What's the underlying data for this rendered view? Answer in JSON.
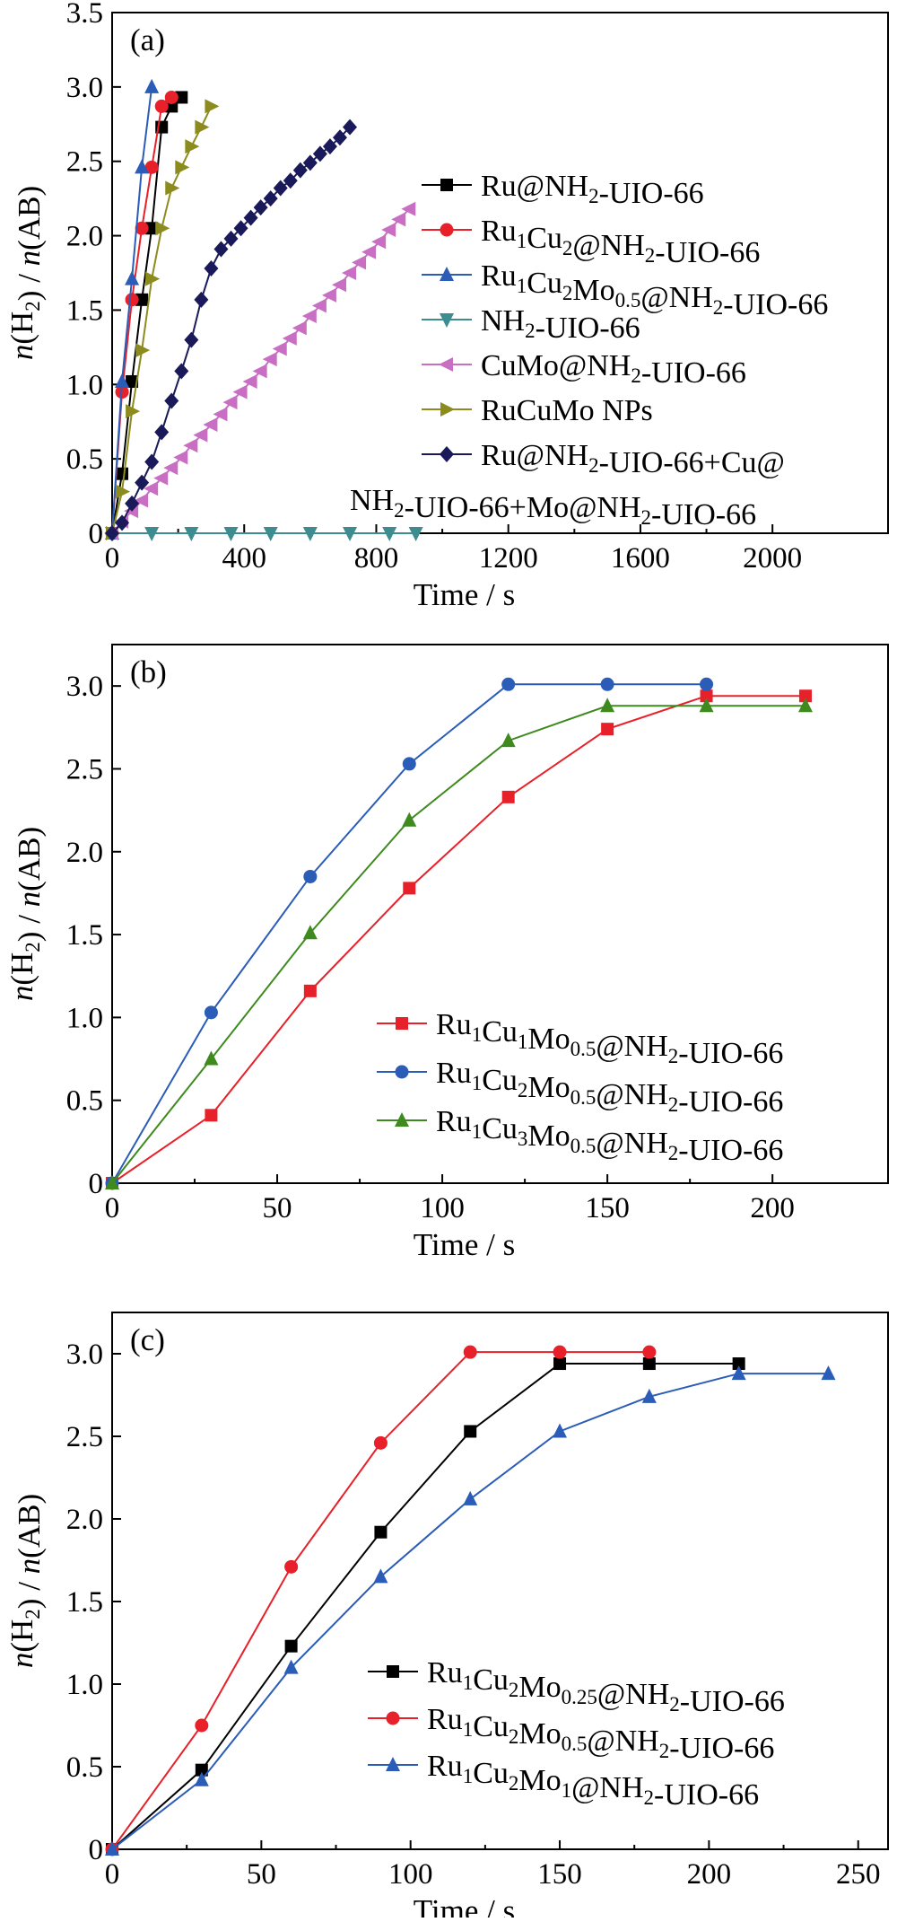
{
  "chart_data": [
    {
      "type": "line",
      "panel_label": "(a)",
      "xlabel": "Time / s",
      "ylabel": "n(H2) / n(AB)",
      "xlim": [
        0,
        2350
      ],
      "ylim": [
        0,
        3.5
      ],
      "xticks": [
        0,
        400,
        800,
        1200,
        1600,
        2000
      ],
      "yticks": [
        0,
        0.5,
        1.0,
        1.5,
        2.0,
        2.5,
        3.0,
        3.5
      ],
      "grid": false,
      "legend_position": "right",
      "series": [
        {
          "name": "Ru@NH2-UIO-66",
          "legend": "Ru@NH₂-UIO-66",
          "color": "#000000",
          "marker": "square",
          "x": [
            0,
            30,
            60,
            90,
            120,
            150,
            180,
            210
          ],
          "y": [
            0,
            0.4,
            1.02,
            1.57,
            2.05,
            2.73,
            2.87,
            2.93
          ]
        },
        {
          "name": "Ru1Cu2@NH2-UIO-66",
          "legend": "Ru₁Cu₂@NH₂-UIO-66",
          "color": "#e8202a",
          "marker": "circle",
          "x": [
            0,
            30,
            60,
            90,
            120,
            150,
            180
          ],
          "y": [
            0,
            0.95,
            1.57,
            2.05,
            2.46,
            2.87,
            2.93
          ]
        },
        {
          "name": "Ru1Cu2Mo0.5@NH2-UIO-66",
          "legend": "Ru₁Cu₂Mo₀.₅@NH₂-UIO-66",
          "color": "#2a5cb8",
          "marker": "triangle-up",
          "x": [
            0,
            30,
            60,
            90,
            120
          ],
          "y": [
            0,
            1.02,
            1.71,
            2.46,
            3.0
          ]
        },
        {
          "name": "NH2-UIO-66",
          "legend": "NH₂-UIO-66",
          "color": "#3d8c8f",
          "marker": "triangle-down",
          "x": [
            0,
            120,
            240,
            360,
            480,
            600,
            720,
            840,
            920
          ],
          "y": [
            0,
            0,
            0,
            0,
            0,
            0,
            0,
            0,
            0
          ]
        },
        {
          "name": "CuMo@NH2-UIO-66",
          "legend": "CuMo@NH₂-UIO-66",
          "color": "#c86fc4",
          "marker": "triangle-left",
          "x": [
            0,
            30,
            60,
            90,
            120,
            150,
            180,
            210,
            240,
            270,
            300,
            330,
            360,
            390,
            420,
            450,
            480,
            510,
            540,
            570,
            600,
            630,
            660,
            690,
            720,
            750,
            780,
            810,
            840,
            870,
            900
          ],
          "y": [
            0,
            0.08,
            0.15,
            0.22,
            0.3,
            0.37,
            0.44,
            0.51,
            0.59,
            0.66,
            0.73,
            0.8,
            0.88,
            0.95,
            1.02,
            1.09,
            1.17,
            1.24,
            1.31,
            1.38,
            1.46,
            1.53,
            1.6,
            1.67,
            1.75,
            1.82,
            1.89,
            1.96,
            2.04,
            2.11,
            2.18
          ]
        },
        {
          "name": "RuCuMo NPs",
          "legend": "RuCuMo NPs",
          "color": "#8c8c1e",
          "marker": "triangle-right",
          "x": [
            0,
            30,
            60,
            90,
            120,
            150,
            180,
            210,
            240,
            270,
            300
          ],
          "y": [
            0,
            0.28,
            0.82,
            1.23,
            1.71,
            2.05,
            2.32,
            2.46,
            2.6,
            2.73,
            2.87
          ]
        },
        {
          "name": "Ru@NH2-UIO-66+Cu@NH2-UIO-66+Mo@NH2-UIO-66",
          "legend": "Ru@NH₂-UIO-66+Cu@",
          "legend_line2": "NH₂-UIO-66+Mo@NH₂-UIO-66",
          "color": "#1a1a5a",
          "marker": "diamond",
          "x": [
            0,
            30,
            60,
            90,
            120,
            150,
            180,
            210,
            240,
            270,
            300,
            330,
            360,
            390,
            420,
            450,
            480,
            510,
            540,
            570,
            600,
            630,
            660,
            690,
            720
          ],
          "y": [
            0,
            0.07,
            0.2,
            0.34,
            0.48,
            0.68,
            0.89,
            1.09,
            1.3,
            1.57,
            1.78,
            1.91,
            1.98,
            2.05,
            2.12,
            2.19,
            2.25,
            2.32,
            2.37,
            2.44,
            2.49,
            2.55,
            2.6,
            2.66,
            2.73
          ]
        }
      ]
    },
    {
      "type": "line",
      "panel_label": "(b)",
      "xlabel": "Time / s",
      "ylabel": "n(H2) / n(AB)",
      "xlim": [
        0,
        235
      ],
      "ylim": [
        0,
        3.25
      ],
      "xticks": [
        0,
        50,
        100,
        150,
        200
      ],
      "yticks": [
        0,
        0.5,
        1.0,
        1.5,
        2.0,
        2.5,
        3.0
      ],
      "grid": false,
      "legend_position": "lower-right",
      "series": [
        {
          "name": "Ru1Cu1Mo0.5@NH2-UIO-66",
          "legend": "Ru₁Cu₁Mo₀.₅@NH₂-UIO-66",
          "color": "#e8202a",
          "marker": "square",
          "x": [
            0,
            30,
            60,
            90,
            120,
            150,
            180,
            210
          ],
          "y": [
            0,
            0.41,
            1.16,
            1.78,
            2.33,
            2.74,
            2.94,
            2.94
          ]
        },
        {
          "name": "Ru1Cu2Mo0.5@NH2-UIO-66",
          "legend": "Ru₁Cu₂Mo₀.₅@NH₂-UIO-66",
          "color": "#2a5cb8",
          "marker": "circle",
          "x": [
            0,
            30,
            60,
            90,
            120,
            150,
            180
          ],
          "y": [
            0,
            1.03,
            1.85,
            2.53,
            3.01,
            3.01,
            3.01
          ]
        },
        {
          "name": "Ru1Cu3Mo0.5@NH2-UIO-66",
          "legend": "Ru₁Cu₃Mo₀.₅@NH₂-UIO-66",
          "color": "#3e8a1f",
          "marker": "triangle-up",
          "x": [
            0,
            30,
            60,
            90,
            120,
            150,
            180,
            210
          ],
          "y": [
            0,
            0.75,
            1.51,
            2.19,
            2.67,
            2.88,
            2.88,
            2.88
          ]
        }
      ]
    },
    {
      "type": "line",
      "panel_label": "(c)",
      "xlabel": "Time / s",
      "ylabel": "n(H2) / n(AB)",
      "xlim": [
        0,
        260
      ],
      "ylim": [
        0,
        3.25
      ],
      "xticks": [
        0,
        50,
        100,
        150,
        200,
        250
      ],
      "yticks": [
        0,
        0.5,
        1.0,
        1.5,
        2.0,
        2.5,
        3.0
      ],
      "grid": false,
      "legend_position": "lower-right",
      "series": [
        {
          "name": "Ru1Cu2Mo0.25@NH2-UIO-66",
          "legend": "Ru₁Cu₂Mo₀.₂₅@NH₂-UIO-66",
          "color": "#000000",
          "marker": "square",
          "x": [
            0,
            30,
            60,
            90,
            120,
            150,
            180,
            210
          ],
          "y": [
            0,
            0.48,
            1.23,
            1.92,
            2.53,
            2.94,
            2.94,
            2.94
          ]
        },
        {
          "name": "Ru1Cu2Mo0.5@NH2-UIO-66",
          "legend": "Ru₁Cu₂Mo₀.₅@NH₂-UIO-66",
          "color": "#e8202a",
          "marker": "circle",
          "x": [
            0,
            30,
            60,
            90,
            120,
            150,
            180
          ],
          "y": [
            0,
            0.75,
            1.71,
            2.46,
            3.01,
            3.01,
            3.01
          ]
        },
        {
          "name": "Ru1Cu2Mo1@NH2-UIO-66",
          "legend": "Ru₁Cu₂Mo₁@NH₂-UIO-66",
          "color": "#2a5cb8",
          "marker": "triangle-up",
          "x": [
            0,
            30,
            60,
            90,
            120,
            150,
            180,
            210,
            240
          ],
          "y": [
            0,
            0.42,
            1.1,
            1.65,
            2.12,
            2.53,
            2.74,
            2.88,
            2.88
          ]
        }
      ]
    }
  ]
}
